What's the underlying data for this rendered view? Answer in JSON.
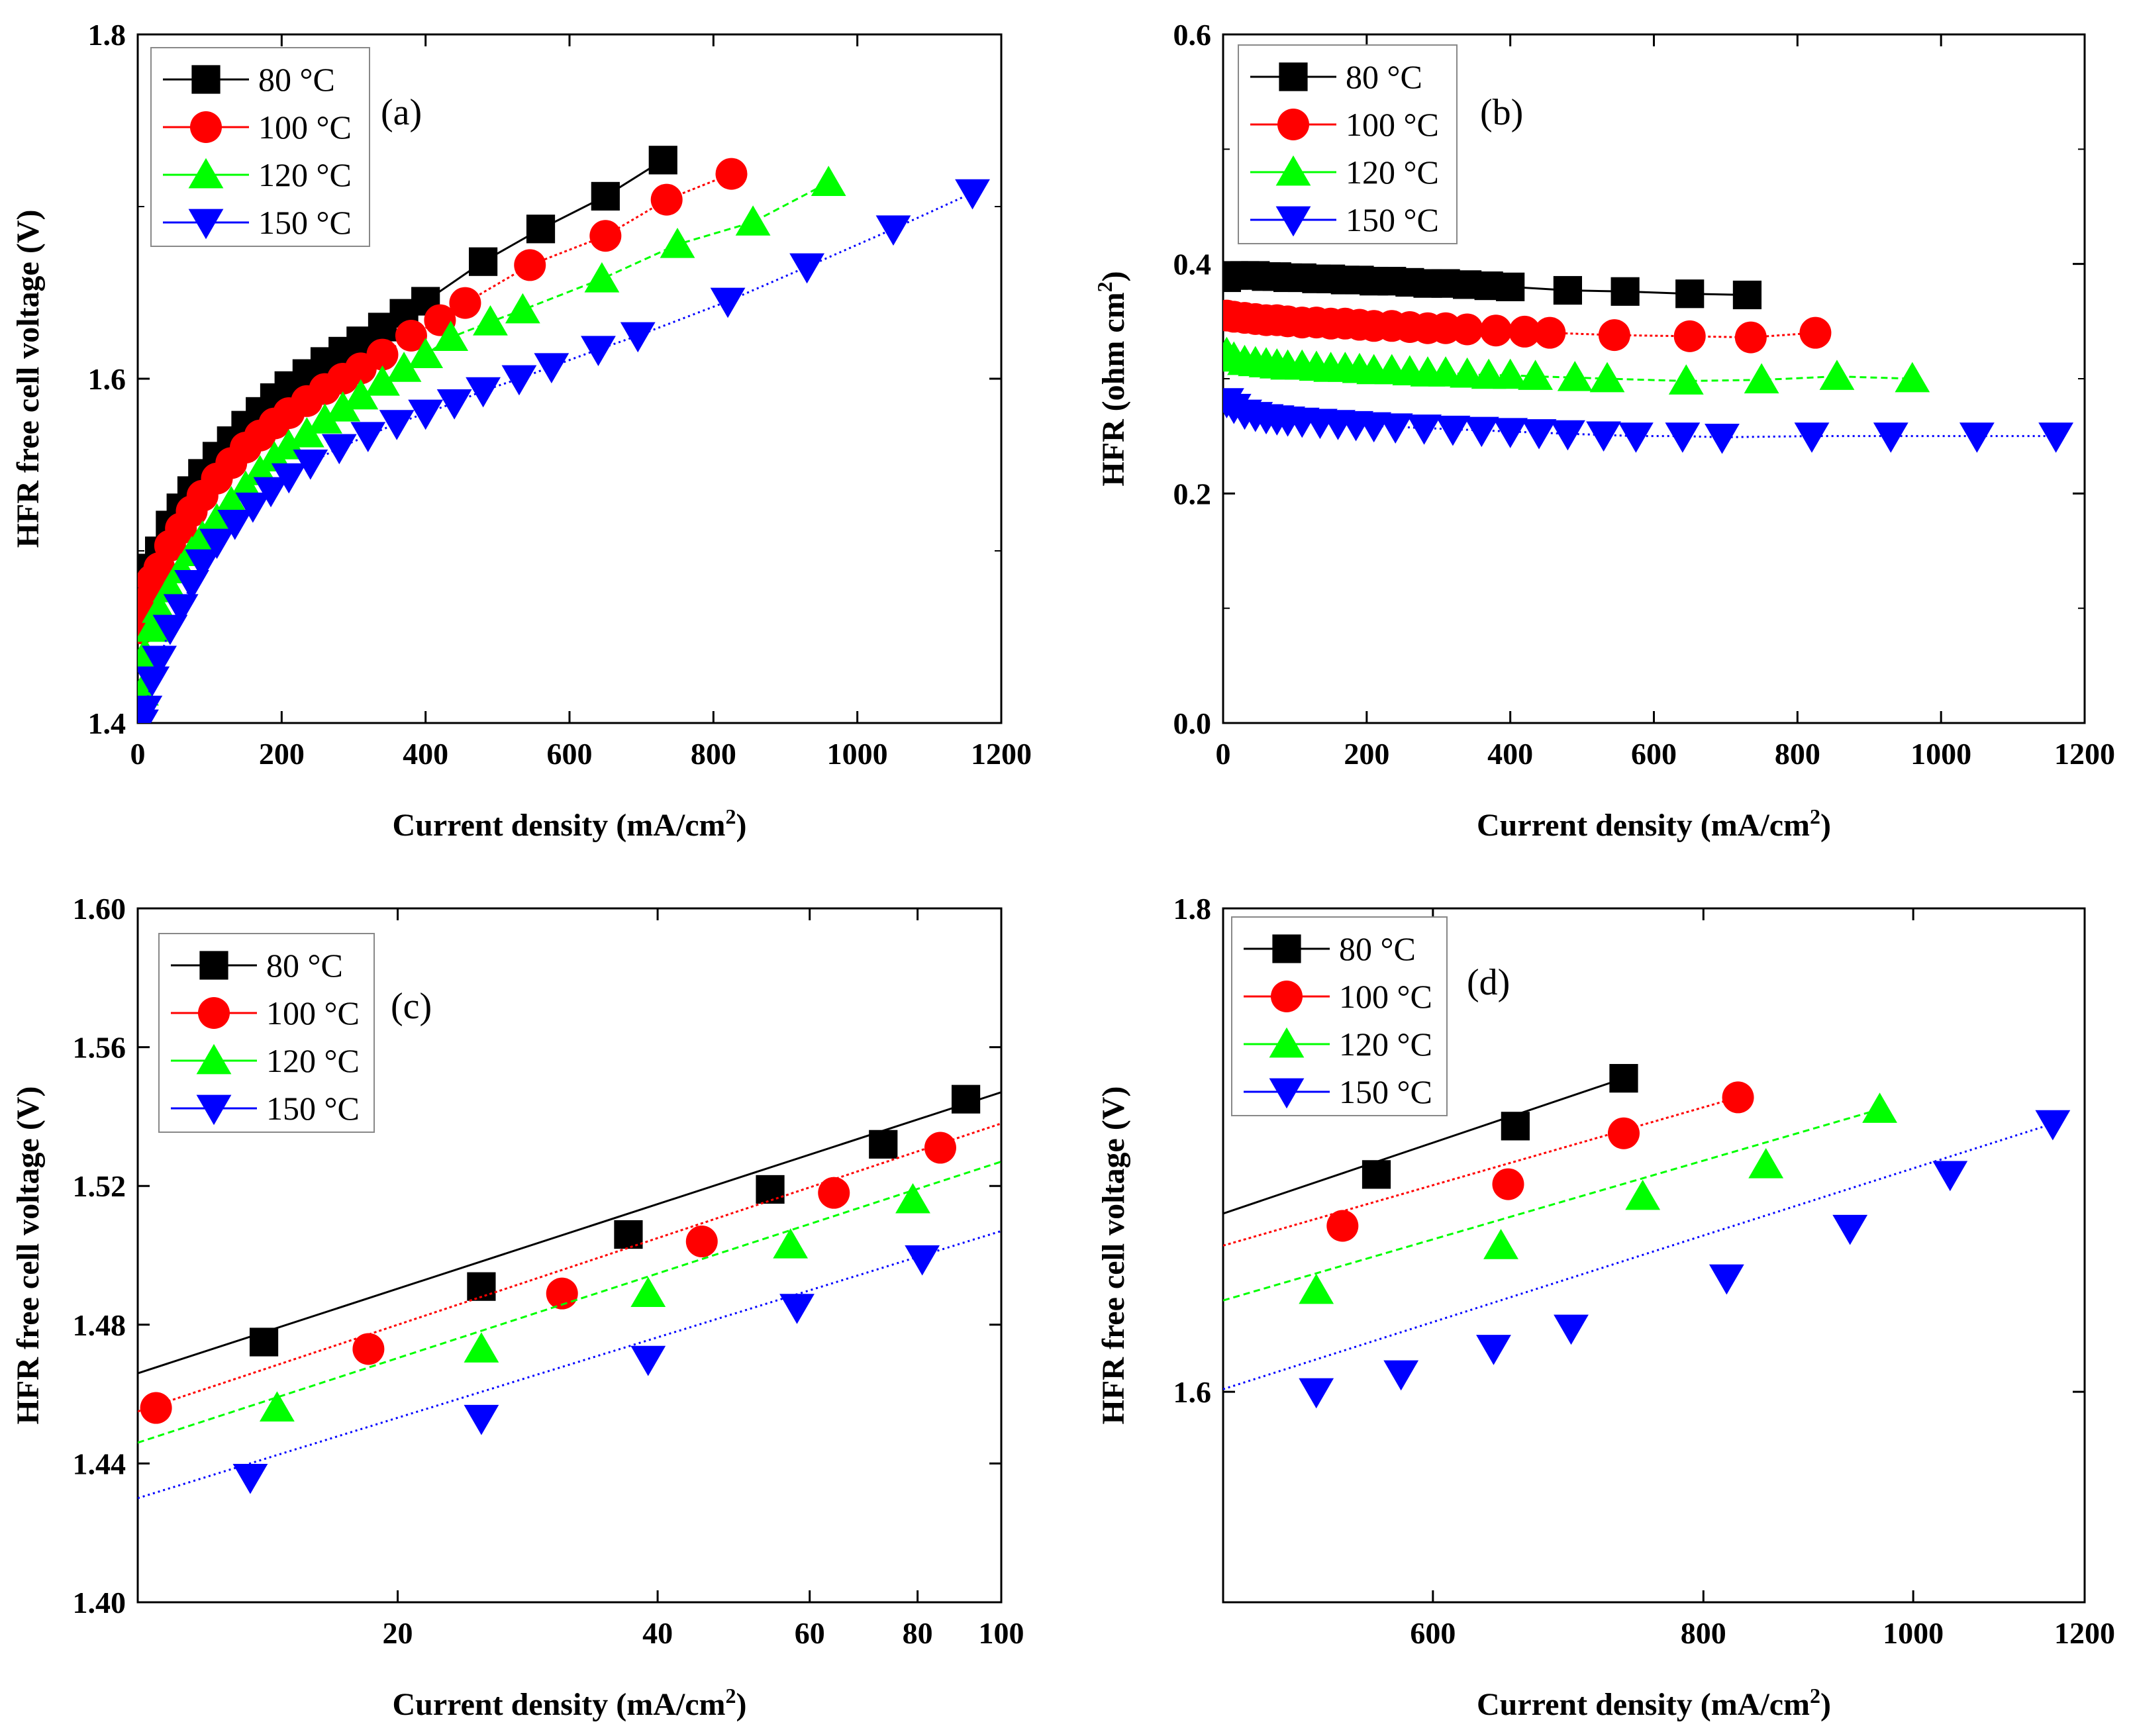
{
  "colors": {
    "s80": "#000000",
    "s100": "#ff0000",
    "s120": "#00ff00",
    "s150": "#0000ff"
  },
  "chart_data": [
    {
      "panel": "(a)",
      "type": "scatter",
      "xlabel": "Current density (mA/cm2)",
      "ylabel": "HFR free cell voltage (V)",
      "xscale": "linear",
      "xlim": [
        0,
        1200
      ],
      "yscale": "linear",
      "ylim": [
        1.4,
        1.8
      ],
      "xticks": [
        0,
        200,
        400,
        600,
        800,
        1000,
        1200
      ],
      "xtick_labels": [
        "0",
        "200",
        "400",
        "600",
        "800",
        "1000",
        "1200"
      ],
      "yticks": [
        1.4,
        1.6,
        1.8
      ],
      "ytick_labels": [
        "1.4",
        "1.6",
        "1.8"
      ],
      "minor_yticks": [
        1.5,
        1.7
      ],
      "legend_position": "top-left",
      "series": [
        {
          "name": "80 °C",
          "marker": "square",
          "color": "#000000",
          "x": [
            5,
            10,
            20,
            30,
            45,
            60,
            75,
            90,
            110,
            130,
            150,
            170,
            190,
            210,
            235,
            260,
            285,
            310,
            340,
            370,
            400,
            480,
            560,
            650,
            730
          ],
          "y": [
            1.46,
            1.475,
            1.49,
            1.5,
            1.515,
            1.525,
            1.535,
            1.545,
            1.555,
            1.564,
            1.573,
            1.581,
            1.589,
            1.596,
            1.603,
            1.61,
            1.616,
            1.622,
            1.63,
            1.638,
            1.645,
            1.668,
            1.687,
            1.706,
            1.727
          ]
        },
        {
          "name": "100 °C",
          "marker": "circle",
          "color": "#ff0000",
          "x": [
            5,
            10,
            20,
            30,
            45,
            60,
            75,
            90,
            110,
            130,
            150,
            170,
            190,
            210,
            235,
            260,
            285,
            310,
            340,
            380,
            420,
            455,
            545,
            650,
            735,
            825
          ],
          "y": [
            1.455,
            1.47,
            1.483,
            1.49,
            1.503,
            1.513,
            1.523,
            1.532,
            1.542,
            1.551,
            1.56,
            1.567,
            1.574,
            1.58,
            1.587,
            1.594,
            1.6,
            1.606,
            1.614,
            1.625,
            1.634,
            1.644,
            1.666,
            1.683,
            1.704,
            1.719
          ]
        },
        {
          "name": "120 °C",
          "marker": "triangle-up",
          "color": "#00ff00",
          "x": [
            5,
            10,
            20,
            30,
            45,
            60,
            75,
            90,
            110,
            130,
            150,
            170,
            190,
            210,
            235,
            260,
            285,
            310,
            340,
            370,
            400,
            435,
            490,
            535,
            645,
            750,
            855,
            960
          ],
          "y": [
            1.418,
            1.44,
            1.455,
            1.466,
            1.478,
            1.489,
            1.499,
            1.508,
            1.518,
            1.528,
            1.537,
            1.546,
            1.554,
            1.561,
            1.568,
            1.576,
            1.583,
            1.59,
            1.598,
            1.606,
            1.614,
            1.624,
            1.633,
            1.64,
            1.658,
            1.678,
            1.691,
            1.714
          ]
        },
        {
          "name": "150 °C",
          "marker": "triangle-down",
          "color": "#0000ff",
          "x": [
            5,
            10,
            20,
            30,
            45,
            60,
            75,
            90,
            110,
            135,
            160,
            185,
            210,
            240,
            280,
            320,
            360,
            400,
            440,
            480,
            530,
            575,
            640,
            695,
            820,
            930,
            1050,
            1160
          ],
          "y": [
            1.4,
            1.408,
            1.425,
            1.437,
            1.455,
            1.467,
            1.481,
            1.493,
            1.505,
            1.516,
            1.526,
            1.535,
            1.543,
            1.551,
            1.56,
            1.567,
            1.574,
            1.58,
            1.586,
            1.593,
            1.6,
            1.607,
            1.617,
            1.625,
            1.645,
            1.665,
            1.687,
            1.708
          ]
        }
      ]
    },
    {
      "panel": "(b)",
      "type": "scatter",
      "xlabel": "Current density (mA/cm2)",
      "ylabel": "HFR (ohm cm2)",
      "xscale": "linear",
      "xlim": [
        0,
        1200
      ],
      "yscale": "linear",
      "ylim": [
        0.0,
        0.6
      ],
      "xticks": [
        0,
        200,
        400,
        600,
        800,
        1000,
        1200
      ],
      "xtick_labels": [
        "0",
        "200",
        "400",
        "600",
        "800",
        "1000",
        "1200"
      ],
      "yticks": [
        0.0,
        0.2,
        0.4,
        0.6
      ],
      "ytick_labels": [
        "0.0",
        "0.2",
        "0.4",
        "0.6"
      ],
      "minor_yticks": [
        0.1,
        0.3,
        0.5
      ],
      "legend_position": "top-left",
      "series": [
        {
          "name": "80 °C",
          "marker": "square",
          "color": "#000000",
          "x": [
            5,
            15,
            30,
            45,
            60,
            75,
            90,
            110,
            130,
            150,
            170,
            190,
            210,
            235,
            260,
            285,
            310,
            340,
            370,
            400,
            480,
            560,
            650,
            730
          ],
          "y": [
            0.388,
            0.39,
            0.39,
            0.39,
            0.389,
            0.389,
            0.388,
            0.388,
            0.387,
            0.387,
            0.386,
            0.386,
            0.385,
            0.385,
            0.384,
            0.383,
            0.383,
            0.382,
            0.381,
            0.38,
            0.377,
            0.376,
            0.374,
            0.373
          ]
        },
        {
          "name": "100 °C",
          "marker": "circle",
          "color": "#ff0000",
          "x": [
            5,
            15,
            30,
            45,
            60,
            75,
            90,
            110,
            130,
            150,
            170,
            190,
            210,
            235,
            260,
            285,
            310,
            340,
            380,
            420,
            455,
            545,
            650,
            735,
            825
          ],
          "y": [
            0.355,
            0.354,
            0.353,
            0.352,
            0.351,
            0.351,
            0.35,
            0.349,
            0.349,
            0.348,
            0.348,
            0.347,
            0.346,
            0.346,
            0.345,
            0.344,
            0.344,
            0.343,
            0.342,
            0.341,
            0.34,
            0.338,
            0.337,
            0.336,
            0.34
          ]
        },
        {
          "name": "120 °C",
          "marker": "triangle-up",
          "color": "#00ff00",
          "x": [
            5,
            15,
            30,
            45,
            60,
            75,
            90,
            110,
            130,
            150,
            170,
            190,
            210,
            235,
            260,
            285,
            310,
            340,
            370,
            400,
            435,
            490,
            535,
            645,
            750,
            855,
            960
          ],
          "y": [
            0.322,
            0.318,
            0.315,
            0.314,
            0.313,
            0.312,
            0.311,
            0.311,
            0.31,
            0.309,
            0.309,
            0.308,
            0.307,
            0.307,
            0.306,
            0.305,
            0.305,
            0.304,
            0.303,
            0.303,
            0.302,
            0.301,
            0.3,
            0.298,
            0.299,
            0.302,
            0.3
          ]
        },
        {
          "name": "150 °C",
          "marker": "triangle-down",
          "color": "#0000ff",
          "x": [
            5,
            15,
            30,
            45,
            60,
            75,
            90,
            110,
            135,
            160,
            185,
            210,
            240,
            280,
            320,
            360,
            400,
            440,
            480,
            530,
            575,
            640,
            695,
            820,
            930,
            1050,
            1160
          ],
          "y": [
            0.28,
            0.275,
            0.27,
            0.268,
            0.266,
            0.265,
            0.264,
            0.263,
            0.262,
            0.261,
            0.26,
            0.259,
            0.258,
            0.257,
            0.256,
            0.255,
            0.254,
            0.253,
            0.252,
            0.251,
            0.25,
            0.25,
            0.249,
            0.25,
            0.25,
            0.25,
            0.25
          ]
        }
      ]
    },
    {
      "panel": "(c)",
      "type": "scatter",
      "xlabel": "Current density (mA/cm2)",
      "ylabel": "HFR free cell voltage (V)",
      "xscale": "log",
      "xlim": [
        10,
        100
      ],
      "yscale": "linear",
      "ylim": [
        1.4,
        1.6
      ],
      "xticks": [
        20,
        40,
        60,
        80,
        100
      ],
      "xtick_labels": [
        "20",
        "40",
        "60",
        "80",
        "100"
      ],
      "yticks": [
        1.4,
        1.44,
        1.48,
        1.52,
        1.56,
        1.6
      ],
      "ytick_labels": [
        "1.40",
        "1.44",
        "1.48",
        "1.52",
        "1.56",
        "1.60"
      ],
      "legend_position": "top-left",
      "series": [
        {
          "name": "80 °C",
          "marker": "square",
          "color": "#000000",
          "x": [
            14,
            25,
            37,
            54,
            73,
            91
          ],
          "y": [
            1.475,
            1.491,
            1.506,
            1.519,
            1.532,
            1.545
          ],
          "fit": {
            "x": [
              10,
              100
            ],
            "y": [
              1.466,
              1.547
            ]
          }
        },
        {
          "name": "100 °C",
          "marker": "circle",
          "color": "#ff0000",
          "x": [
            10.5,
            18.5,
            31,
            45,
            64,
            85
          ],
          "y": [
            1.456,
            1.473,
            1.489,
            1.504,
            1.518,
            1.531
          ],
          "fit": {
            "x": [
              10,
              100
            ],
            "y": [
              1.455,
              1.538
            ]
          }
        },
        {
          "name": "120 °C",
          "marker": "triangle-up",
          "color": "#00ff00",
          "x": [
            14.5,
            25,
            39,
            57,
            79
          ],
          "y": [
            1.456,
            1.473,
            1.489,
            1.503,
            1.516
          ],
          "fit": {
            "x": [
              10,
              100
            ],
            "y": [
              1.446,
              1.527
            ]
          }
        },
        {
          "name": "150 °C",
          "marker": "triangle-down",
          "color": "#0000ff",
          "x": [
            13.5,
            25,
            39,
            58,
            81
          ],
          "y": [
            1.436,
            1.453,
            1.47,
            1.485,
            1.499
          ],
          "fit": {
            "x": [
              10,
              100
            ],
            "y": [
              1.43,
              1.507
            ]
          }
        }
      ]
    },
    {
      "panel": "(d)",
      "type": "scatter",
      "xlabel": "Current density (mA/cm2)",
      "ylabel": "HFR free cell voltage (V)",
      "xscale": "log",
      "xlim": [
        480,
        1200
      ],
      "yscale": "log",
      "ylim": [
        1.52,
        1.8
      ],
      "xticks": [
        600,
        800,
        1000,
        1200
      ],
      "xtick_labels": [
        "600",
        "800",
        "1000",
        "1200"
      ],
      "yticks": [
        1.6,
        1.8
      ],
      "ytick_labels": [
        "1.6",
        "1.8"
      ],
      "legend_position": "top-left",
      "series": [
        {
          "name": "80 °C",
          "marker": "square",
          "color": "#000000",
          "x": [
            565,
            655,
            735
          ],
          "y": [
            1.687,
            1.707,
            1.727
          ],
          "fit": {
            "x": [
              480,
              735
            ],
            "y": [
              1.671,
              1.727
            ]
          }
        },
        {
          "name": "100 °C",
          "marker": "circle",
          "color": "#ff0000",
          "x": [
            545,
            650,
            735,
            830
          ],
          "y": [
            1.666,
            1.683,
            1.704,
            1.719
          ],
          "fit": {
            "x": [
              480,
              830
            ],
            "y": [
              1.658,
              1.719
            ]
          }
        },
        {
          "name": "120 °C",
          "marker": "triangle-up",
          "color": "#00ff00",
          "x": [
            530,
            645,
            750,
            855,
            965
          ],
          "y": [
            1.64,
            1.658,
            1.678,
            1.691,
            1.714
          ],
          "fit": {
            "x": [
              480,
              965
            ],
            "y": [
              1.636,
              1.714
            ]
          }
        },
        {
          "name": "150 °C",
          "marker": "triangle-down",
          "color": "#0000ff",
          "x": [
            530,
            580,
            640,
            695,
            820,
            935,
            1040,
            1160
          ],
          "y": [
            1.6,
            1.607,
            1.617,
            1.625,
            1.645,
            1.665,
            1.687,
            1.708
          ],
          "fit": {
            "x": [
              480,
              1160
            ],
            "y": [
              1.601,
              1.708
            ]
          }
        }
      ]
    }
  ]
}
